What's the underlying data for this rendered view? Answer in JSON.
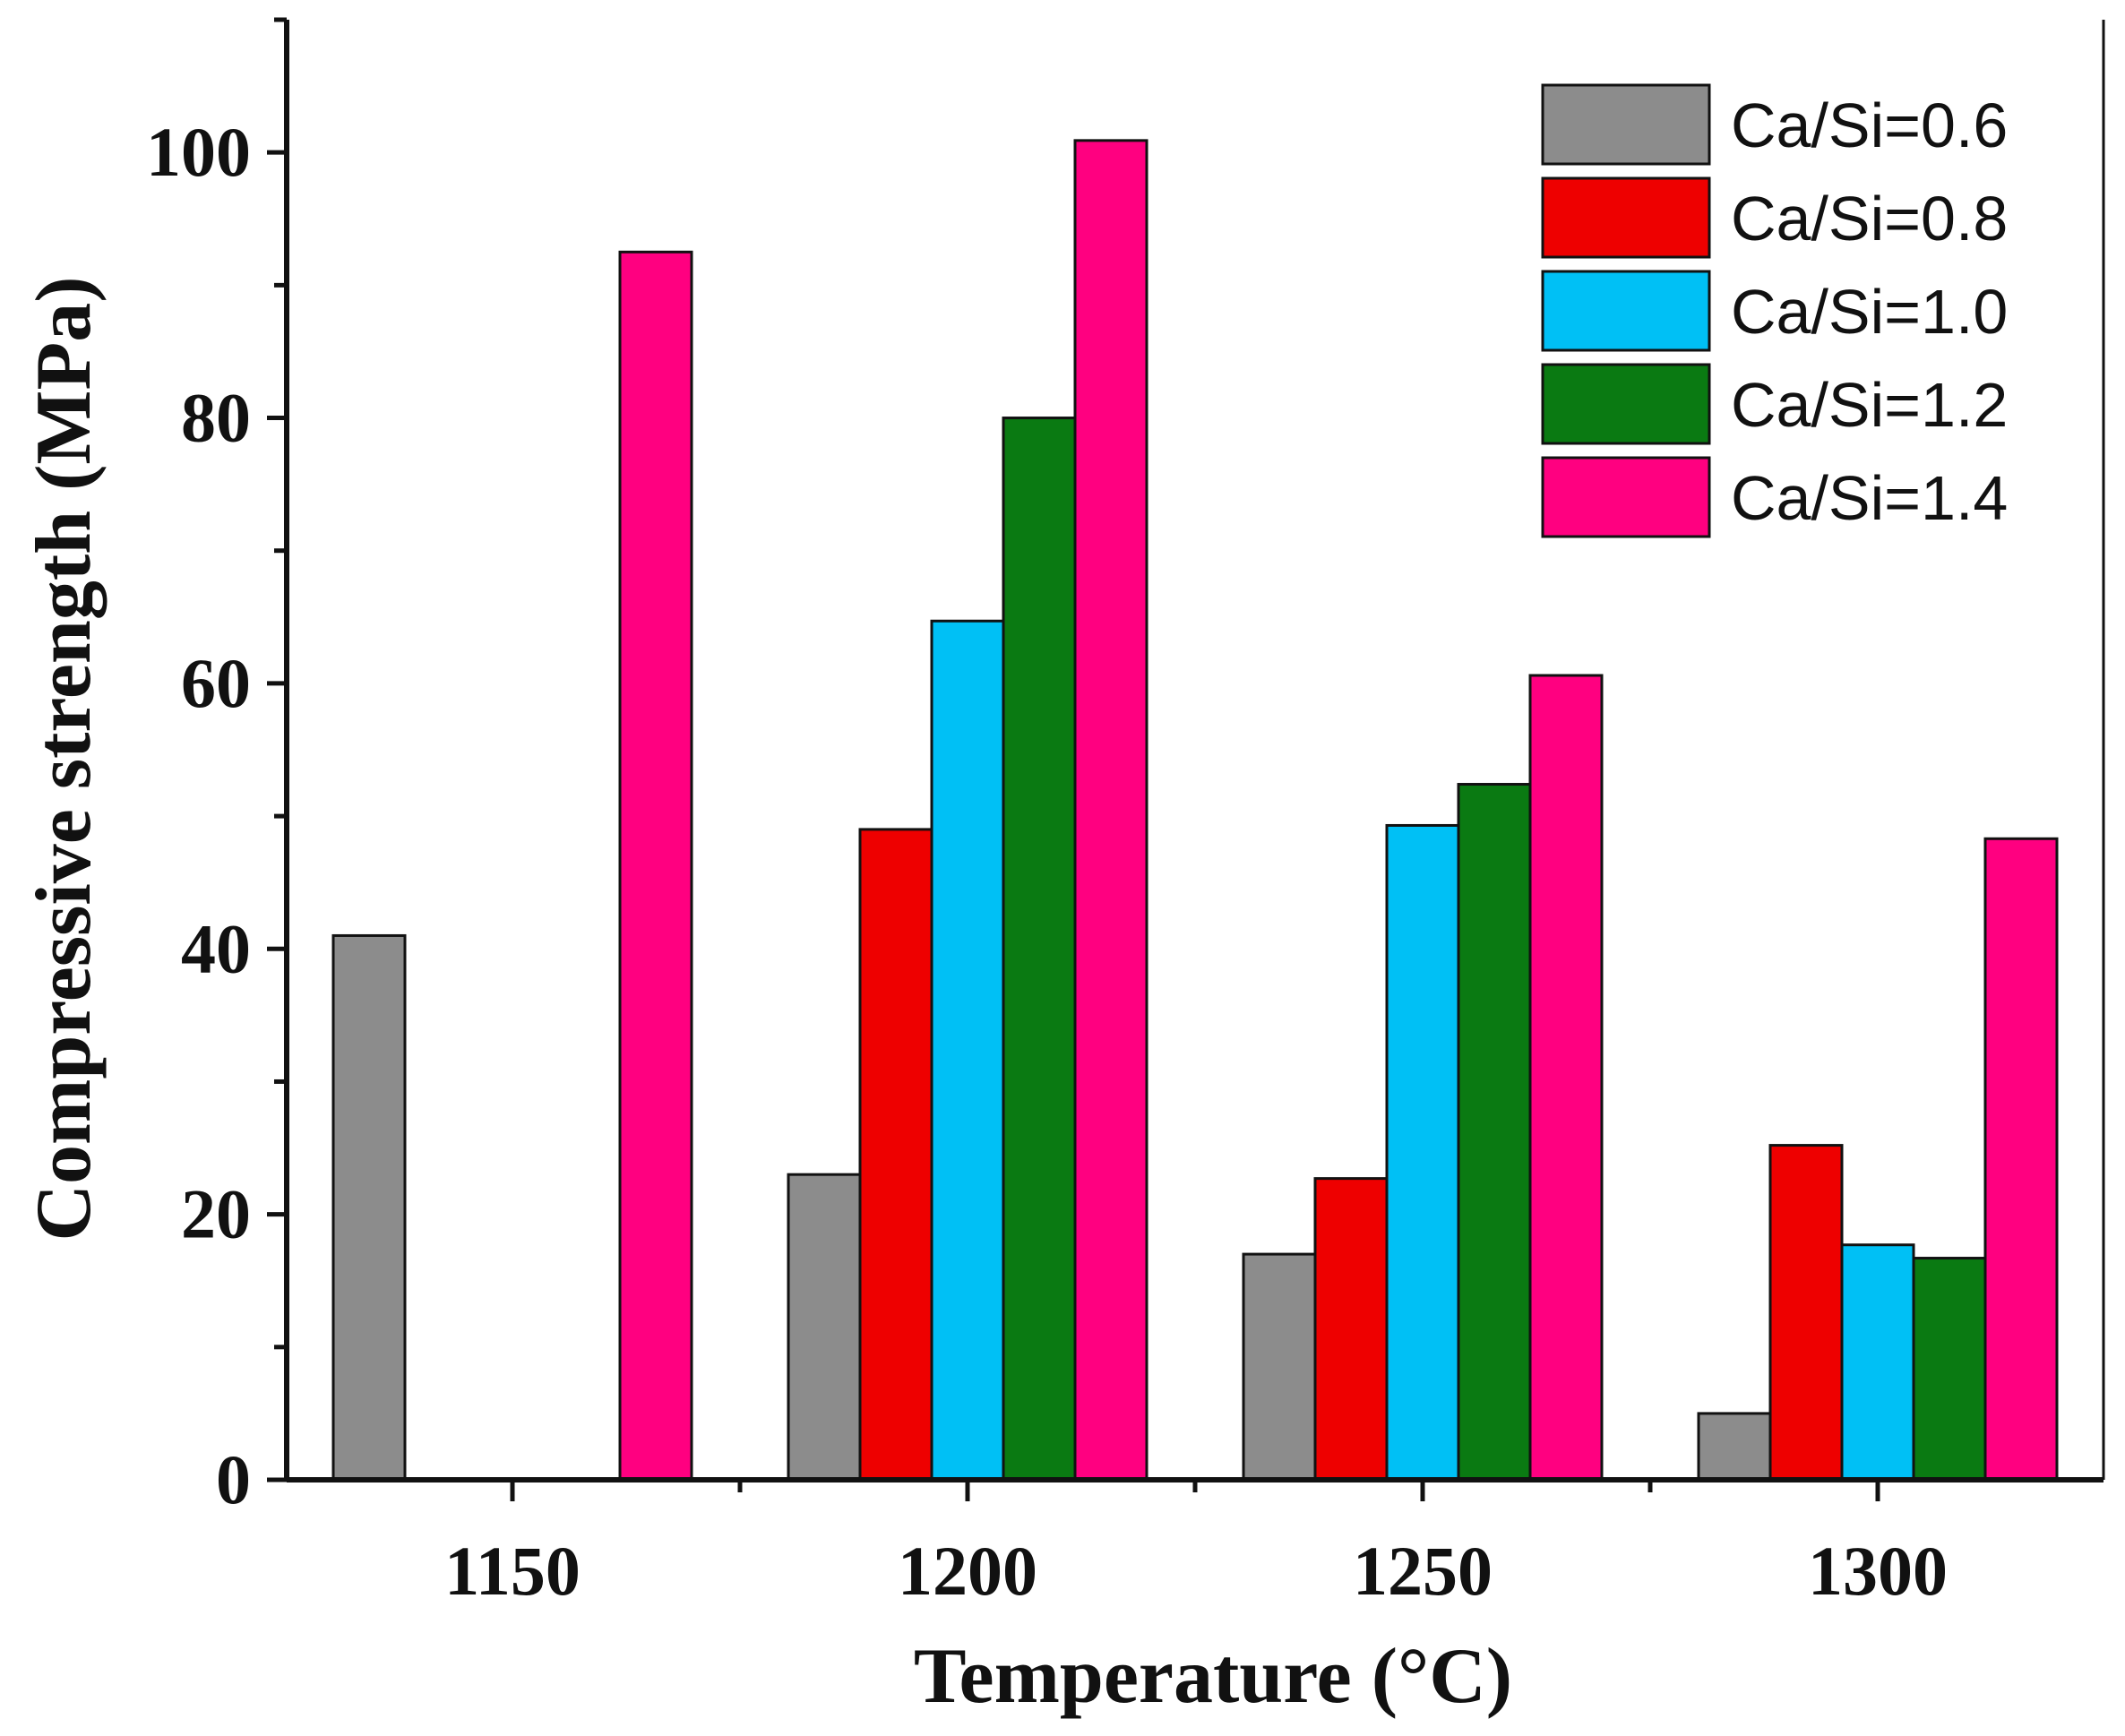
{
  "chart_data": {
    "type": "bar",
    "title": "",
    "xlabel": "Temperature (°C)",
    "ylabel": "Compressive strength (MPa)",
    "categories": [
      "1150",
      "1200",
      "1250",
      "1300"
    ],
    "ylim": [
      0,
      110
    ],
    "yticks": [
      0,
      20,
      40,
      60,
      80,
      100
    ],
    "grid": false,
    "legend_position": "top-right",
    "series": [
      {
        "name": "Ca/Si=0.6",
        "color": "#8c8c8c",
        "values": [
          41,
          23,
          17,
          5
        ]
      },
      {
        "name": "Ca/Si=0.8",
        "color": "#ee0000",
        "values": [
          null,
          49,
          22.7,
          25.2
        ]
      },
      {
        "name": "Ca/Si=1.0",
        "color": "#00c0f5",
        "values": [
          null,
          64.7,
          49.3,
          17.7
        ]
      },
      {
        "name": "Ca/Si=1.2",
        "color": "#0a7a12",
        "values": [
          null,
          80,
          52.4,
          16.7
        ]
      },
      {
        "name": "Ca/Si=1.4",
        "color": "#ff0080",
        "values": [
          92.5,
          100.9,
          60.6,
          48.3
        ]
      }
    ]
  }
}
